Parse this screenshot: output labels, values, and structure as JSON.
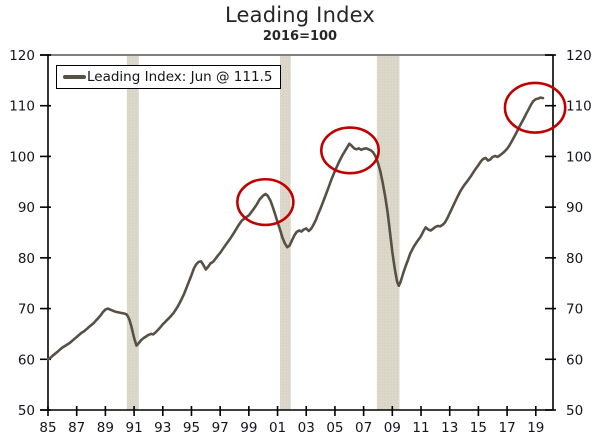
{
  "title": "Leading Index",
  "subtitle": "2016=100",
  "legend": {
    "label": "Leading Index: Jun @ 111.5"
  },
  "colors": {
    "line": "#585045",
    "annotation": "#c00000",
    "band_fill": "#dcd8ca",
    "band_dot": "#ccc7b4",
    "axis": "#000000",
    "frame_top": "#808080",
    "text": "#14141e",
    "background": "#ffffff"
  },
  "chart_data": {
    "type": "line",
    "title": "Leading Index",
    "subtitle": "2016=100",
    "series_name": "Leading Index: Jun @ 111.5",
    "last_point_label": "Jun @ 111.5",
    "xlim": [
      1985,
      2020.2
    ],
    "ylim": [
      50,
      120
    ],
    "grid": false,
    "legend_position": "top-left",
    "yticks": [
      50,
      60,
      70,
      80,
      90,
      100,
      110,
      120
    ],
    "xtick_years": [
      1985,
      1987,
      1989,
      1991,
      1993,
      1995,
      1997,
      1999,
      2001,
      2003,
      2005,
      2007,
      2009,
      2011,
      2013,
      2015,
      2017,
      2019
    ],
    "xtick_labels": [
      "85",
      "87",
      "89",
      "91",
      "93",
      "95",
      "97",
      "99",
      "01",
      "03",
      "05",
      "07",
      "09",
      "11",
      "13",
      "15",
      "17",
      "19"
    ],
    "recession_bands": [
      [
        1990.5,
        1991.33
      ],
      [
        2001.17,
        2001.92
      ],
      [
        2007.92,
        2009.5
      ]
    ],
    "annotations": [
      {
        "shape": "ellipse",
        "cx_year": 2000.15,
        "cy_value": 91.0,
        "rx_years": 1.95,
        "ry_values": 4.5
      },
      {
        "shape": "ellipse",
        "cx_year": 2006.05,
        "cy_value": 101.2,
        "rx_years": 2.0,
        "ry_values": 4.5
      },
      {
        "shape": "ellipse",
        "cx_year": 2018.95,
        "cy_value": 109.6,
        "rx_years": 2.1,
        "ry_values": 4.9
      }
    ],
    "x": [
      1985.0,
      1985.17,
      1985.33,
      1985.5,
      1985.67,
      1985.83,
      1986.0,
      1986.17,
      1986.33,
      1986.5,
      1986.67,
      1986.83,
      1987.0,
      1987.17,
      1987.33,
      1987.5,
      1987.67,
      1987.83,
      1988.0,
      1988.17,
      1988.33,
      1988.5,
      1988.67,
      1988.83,
      1989.0,
      1989.17,
      1989.33,
      1989.5,
      1989.67,
      1989.83,
      1990.0,
      1990.17,
      1990.33,
      1990.5,
      1990.67,
      1990.83,
      1991.0,
      1991.17,
      1991.33,
      1991.5,
      1991.67,
      1991.83,
      1992.0,
      1992.17,
      1992.33,
      1992.5,
      1992.67,
      1992.83,
      1993.0,
      1993.25,
      1993.5,
      1993.75,
      1994.0,
      1994.25,
      1994.5,
      1994.75,
      1995.0,
      1995.17,
      1995.33,
      1995.5,
      1995.67,
      1995.83,
      1996.0,
      1996.17,
      1996.33,
      1996.5,
      1996.67,
      1996.83,
      1997.0,
      1997.25,
      1997.5,
      1997.75,
      1998.0,
      1998.25,
      1998.5,
      1998.75,
      1999.0,
      1999.25,
      1999.5,
      1999.75,
      2000.0,
      2000.17,
      2000.33,
      2000.5,
      2000.67,
      2000.83,
      2001.0,
      2001.17,
      2001.33,
      2001.5,
      2001.67,
      2001.83,
      2002.0,
      2002.17,
      2002.33,
      2002.5,
      2002.67,
      2002.83,
      2003.0,
      2003.17,
      2003.33,
      2003.5,
      2003.67,
      2003.83,
      2004.0,
      2004.25,
      2004.5,
      2004.75,
      2005.0,
      2005.25,
      2005.5,
      2005.75,
      2006.0,
      2006.17,
      2006.33,
      2006.5,
      2006.67,
      2006.83,
      2007.0,
      2007.17,
      2007.33,
      2007.5,
      2007.67,
      2007.83,
      2008.0,
      2008.17,
      2008.33,
      2008.5,
      2008.67,
      2008.83,
      2009.0,
      2009.17,
      2009.33,
      2009.45,
      2009.58,
      2009.75,
      2009.92,
      2010.08,
      2010.25,
      2010.5,
      2010.75,
      2011.0,
      2011.17,
      2011.33,
      2011.5,
      2011.67,
      2011.83,
      2012.0,
      2012.17,
      2012.33,
      2012.5,
      2012.67,
      2012.83,
      2013.0,
      2013.25,
      2013.5,
      2013.75,
      2014.0,
      2014.25,
      2014.5,
      2014.75,
      2015.0,
      2015.17,
      2015.33,
      2015.5,
      2015.67,
      2015.83,
      2016.0,
      2016.17,
      2016.33,
      2016.5,
      2016.67,
      2016.83,
      2017.0,
      2017.17,
      2017.33,
      2017.5,
      2017.67,
      2017.83,
      2018.0,
      2018.17,
      2018.33,
      2018.5,
      2018.67,
      2018.83,
      2019.0,
      2019.17,
      2019.33,
      2019.5
    ],
    "values": [
      60.0,
      60.3,
      60.7,
      61.1,
      61.5,
      61.9,
      62.3,
      62.6,
      62.9,
      63.2,
      63.6,
      64.0,
      64.4,
      64.8,
      65.2,
      65.5,
      65.9,
      66.3,
      66.7,
      67.1,
      67.6,
      68.1,
      68.7,
      69.3,
      69.8,
      70.0,
      69.8,
      69.6,
      69.4,
      69.3,
      69.2,
      69.1,
      69.0,
      68.8,
      67.9,
      66.3,
      64.2,
      62.7,
      63.2,
      63.8,
      64.2,
      64.5,
      64.8,
      65.0,
      64.9,
      65.3,
      65.8,
      66.3,
      66.9,
      67.6,
      68.3,
      69.1,
      70.2,
      71.5,
      73.0,
      74.8,
      76.6,
      77.9,
      78.7,
      79.2,
      79.3,
      78.6,
      77.7,
      78.3,
      78.9,
      79.2,
      79.8,
      80.4,
      81.0,
      82.0,
      83.0,
      84.0,
      85.1,
      86.3,
      87.3,
      87.9,
      88.4,
      89.3,
      90.3,
      91.5,
      92.3,
      92.6,
      92.2,
      91.3,
      90.0,
      88.6,
      87.1,
      85.6,
      84.1,
      82.9,
      82.1,
      82.4,
      83.4,
      84.4,
      85.1,
      85.4,
      85.2,
      85.6,
      85.8,
      85.3,
      85.7,
      86.5,
      87.5,
      88.6,
      89.8,
      91.6,
      93.5,
      95.4,
      97.1,
      98.7,
      100.1,
      101.3,
      102.5,
      102.1,
      101.6,
      101.4,
      101.6,
      101.3,
      101.5,
      101.6,
      101.4,
      101.2,
      100.8,
      100.0,
      98.7,
      97.0,
      94.8,
      92.2,
      89.0,
      85.2,
      81.2,
      77.8,
      75.3,
      74.5,
      75.3,
      76.9,
      78.3,
      79.5,
      80.9,
      82.2,
      83.3,
      84.3,
      85.3,
      86.0,
      85.6,
      85.4,
      85.7,
      86.1,
      86.3,
      86.2,
      86.5,
      87.0,
      87.8,
      88.8,
      90.3,
      91.8,
      93.2,
      94.3,
      95.2,
      96.2,
      97.3,
      98.3,
      99.0,
      99.5,
      99.7,
      99.2,
      99.4,
      99.9,
      100.1,
      99.9,
      100.2,
      100.6,
      101.0,
      101.5,
      102.2,
      103.0,
      103.9,
      104.8,
      105.7,
      106.6,
      107.5,
      108.4,
      109.3,
      110.2,
      110.9,
      111.3,
      111.4,
      111.6,
      111.5
    ]
  }
}
